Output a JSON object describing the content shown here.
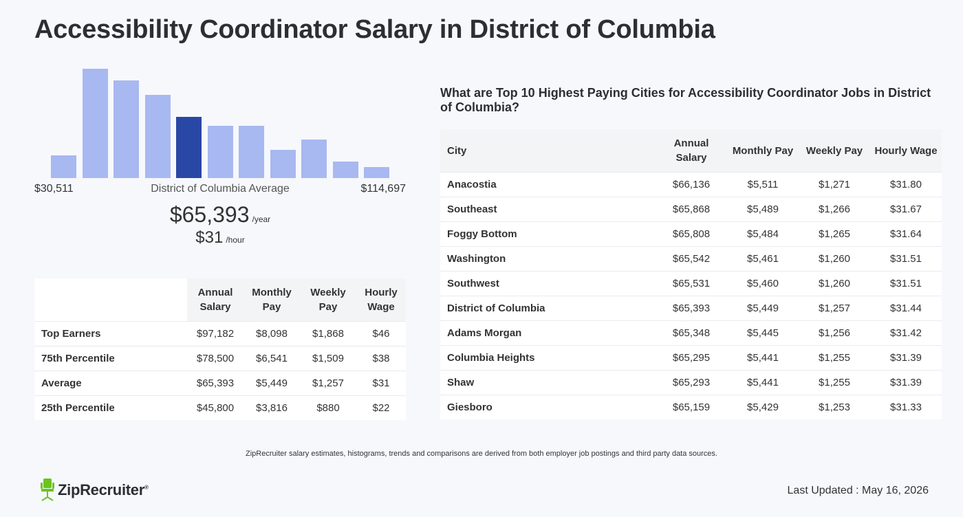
{
  "page": {
    "title": "Accessibility Coordinator Salary in District of Columbia"
  },
  "histogram": {
    "min_label": "$30,511",
    "max_label": "$114,697",
    "center_label": "District of Columbia Average",
    "bar_color": "#a8b8f0",
    "highlight_color": "#2947a5",
    "highlight_index": 4,
    "relative_heights": [
      0.21,
      1.0,
      0.89,
      0.76,
      0.56,
      0.48,
      0.48,
      0.26,
      0.35,
      0.15,
      0.1
    ]
  },
  "summary": {
    "annual_value": "$65,393",
    "annual_unit": "/year",
    "hourly_value": "$31",
    "hourly_unit": "/hour"
  },
  "percentile_table": {
    "headers": [
      "Annual Salary",
      "Monthly Pay",
      "Weekly Pay",
      "Hourly Wage"
    ],
    "rows": [
      {
        "label": "Top Earners",
        "values": [
          "$97,182",
          "$8,098",
          "$1,868",
          "$46"
        ]
      },
      {
        "label": "75th Percentile",
        "values": [
          "$78,500",
          "$6,541",
          "$1,509",
          "$38"
        ]
      },
      {
        "label": "Average",
        "values": [
          "$65,393",
          "$5,449",
          "$1,257",
          "$31"
        ]
      },
      {
        "label": "25th Percentile",
        "values": [
          "$45,800",
          "$3,816",
          "$880",
          "$22"
        ]
      }
    ]
  },
  "cities": {
    "heading": "What are Top 10 Highest Paying Cities for Accessibility Coordinator Jobs in District of Columbia?",
    "headers": [
      "City",
      "Annual Salary",
      "Monthly Pay",
      "Weekly Pay",
      "Hourly Wage"
    ],
    "rows": [
      {
        "city": "Anacostia",
        "values": [
          "$66,136",
          "$5,511",
          "$1,271",
          "$31.80"
        ]
      },
      {
        "city": "Southeast",
        "values": [
          "$65,868",
          "$5,489",
          "$1,266",
          "$31.67"
        ]
      },
      {
        "city": "Foggy Bottom",
        "values": [
          "$65,808",
          "$5,484",
          "$1,265",
          "$31.64"
        ]
      },
      {
        "city": "Washington",
        "values": [
          "$65,542",
          "$5,461",
          "$1,260",
          "$31.51"
        ]
      },
      {
        "city": "Southwest",
        "values": [
          "$65,531",
          "$5,460",
          "$1,260",
          "$31.51"
        ]
      },
      {
        "city": "District of Columbia",
        "values": [
          "$65,393",
          "$5,449",
          "$1,257",
          "$31.44"
        ]
      },
      {
        "city": "Adams Morgan",
        "values": [
          "$65,348",
          "$5,445",
          "$1,256",
          "$31.42"
        ]
      },
      {
        "city": "Columbia Heights",
        "values": [
          "$65,295",
          "$5,441",
          "$1,255",
          "$31.39"
        ]
      },
      {
        "city": "Shaw",
        "values": [
          "$65,293",
          "$5,441",
          "$1,255",
          "$31.39"
        ]
      },
      {
        "city": "Giesboro",
        "values": [
          "$65,159",
          "$5,429",
          "$1,253",
          "$31.33"
        ]
      }
    ]
  },
  "footer": {
    "disclaimer": "ZipRecruiter salary estimates, histograms, trends and comparisons are derived from both employer job postings and third party data sources.",
    "logo_text": "ZipRecruiter",
    "logo_mark": "®",
    "logo_color": "#6bc31f",
    "last_updated": "Last Updated : May 16, 2026"
  }
}
